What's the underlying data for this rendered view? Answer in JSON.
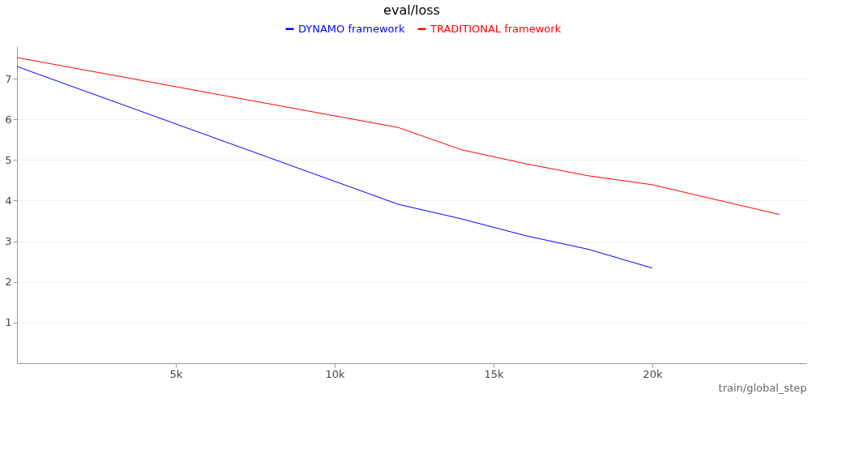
{
  "chart_data": {
    "type": "line",
    "title": "eval/loss",
    "xlabel": "train/global_step",
    "series": [
      {
        "name": "DYNAMO framework",
        "color": "#0000ff",
        "x": [
          0,
          12000,
          14000,
          16000,
          18000,
          20000
        ],
        "values": [
          7.3,
          3.91,
          3.55,
          3.14,
          2.8,
          2.34
        ]
      },
      {
        "name": "TRADITIONAL framework",
        "color": "#ff0000",
        "x": [
          0,
          12000,
          14000,
          16000,
          18000,
          20000,
          24000
        ],
        "values": [
          7.52,
          5.8,
          5.25,
          4.91,
          4.61,
          4.39,
          3.66
        ]
      }
    ],
    "xlim": [
      0,
      24850
    ],
    "xticks": [
      {
        "value": 5000,
        "label": "5k"
      },
      {
        "value": 10000,
        "label": "10k"
      },
      {
        "value": 15000,
        "label": "15k"
      },
      {
        "value": 20000,
        "label": "20k"
      }
    ],
    "ylim": [
      0,
      7.8
    ],
    "yticks": [
      1,
      2,
      3,
      4,
      5,
      6,
      7
    ],
    "grid": "y",
    "legend": "top",
    "marker": "none",
    "line_style": "solid"
  }
}
